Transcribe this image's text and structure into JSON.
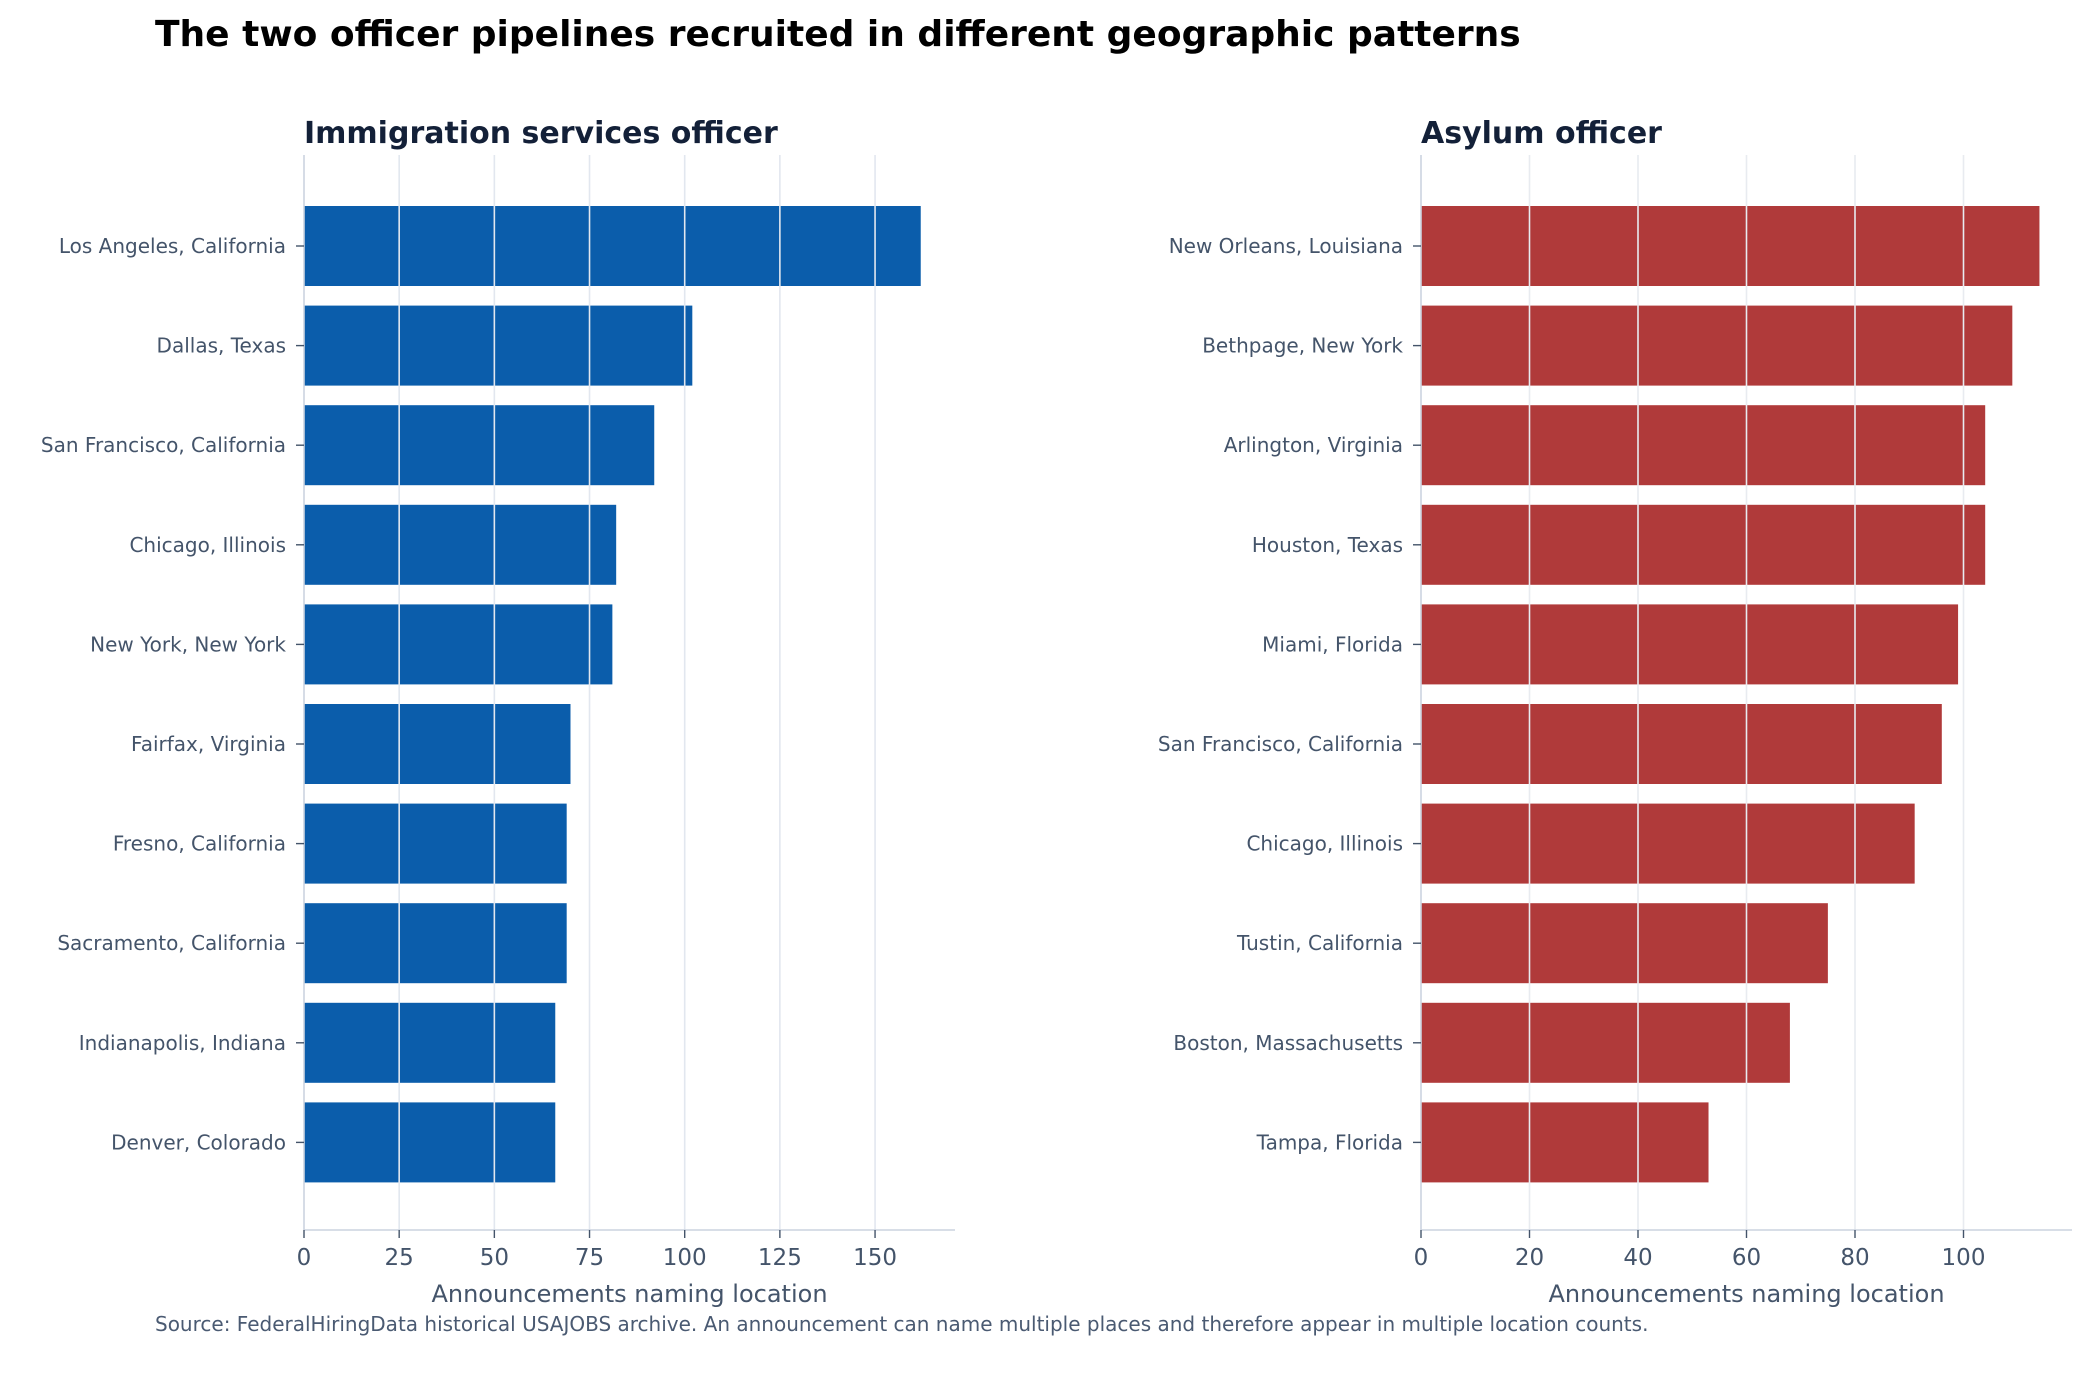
{
  "figure": {
    "title": "The two officer pipelines recruited in different geographic patterns",
    "source_note": "Source: FederalHiringData historical USAJOBS archive. An announcement can name multiple places and therefore appear in multiple location counts."
  },
  "chart_data": [
    {
      "type": "bar",
      "orientation": "horizontal",
      "title": "Immigration services officer",
      "xlabel": "Announcements naming location",
      "ylabel": "",
      "color": "#0b5dab",
      "xlim": [
        0,
        171
      ],
      "xticks": [
        0,
        25,
        50,
        75,
        100,
        125,
        150
      ],
      "grid": "vertical gridlines",
      "categories": [
        "Los Angeles, California",
        "Dallas, Texas",
        "San Francisco, California",
        "Chicago, Illinois",
        "New York, New York",
        "Fairfax, Virginia",
        "Fresno, California",
        "Sacramento, California",
        "Indianapolis, Indiana",
        "Denver, Colorado"
      ],
      "values": [
        162,
        102,
        92,
        82,
        81,
        70,
        69,
        69,
        66,
        66
      ]
    },
    {
      "type": "bar",
      "orientation": "horizontal",
      "title": "Asylum officer",
      "xlabel": "Announcements naming location",
      "ylabel": "",
      "color": "#b03a3a",
      "xlim": [
        0,
        120
      ],
      "xticks": [
        0,
        20,
        40,
        60,
        80,
        100
      ],
      "grid": "vertical gridlines",
      "categories": [
        "New Orleans, Louisiana",
        "Bethpage, New York",
        "Arlington, Virginia",
        "Houston, Texas",
        "Miami, Florida",
        "San Francisco, California",
        "Chicago, Illinois",
        "Tustin, California",
        "Boston, Massachusetts",
        "Tampa, Florida"
      ],
      "values": [
        114,
        109,
        104,
        104,
        99,
        96,
        91,
        75,
        68,
        53
      ]
    }
  ]
}
